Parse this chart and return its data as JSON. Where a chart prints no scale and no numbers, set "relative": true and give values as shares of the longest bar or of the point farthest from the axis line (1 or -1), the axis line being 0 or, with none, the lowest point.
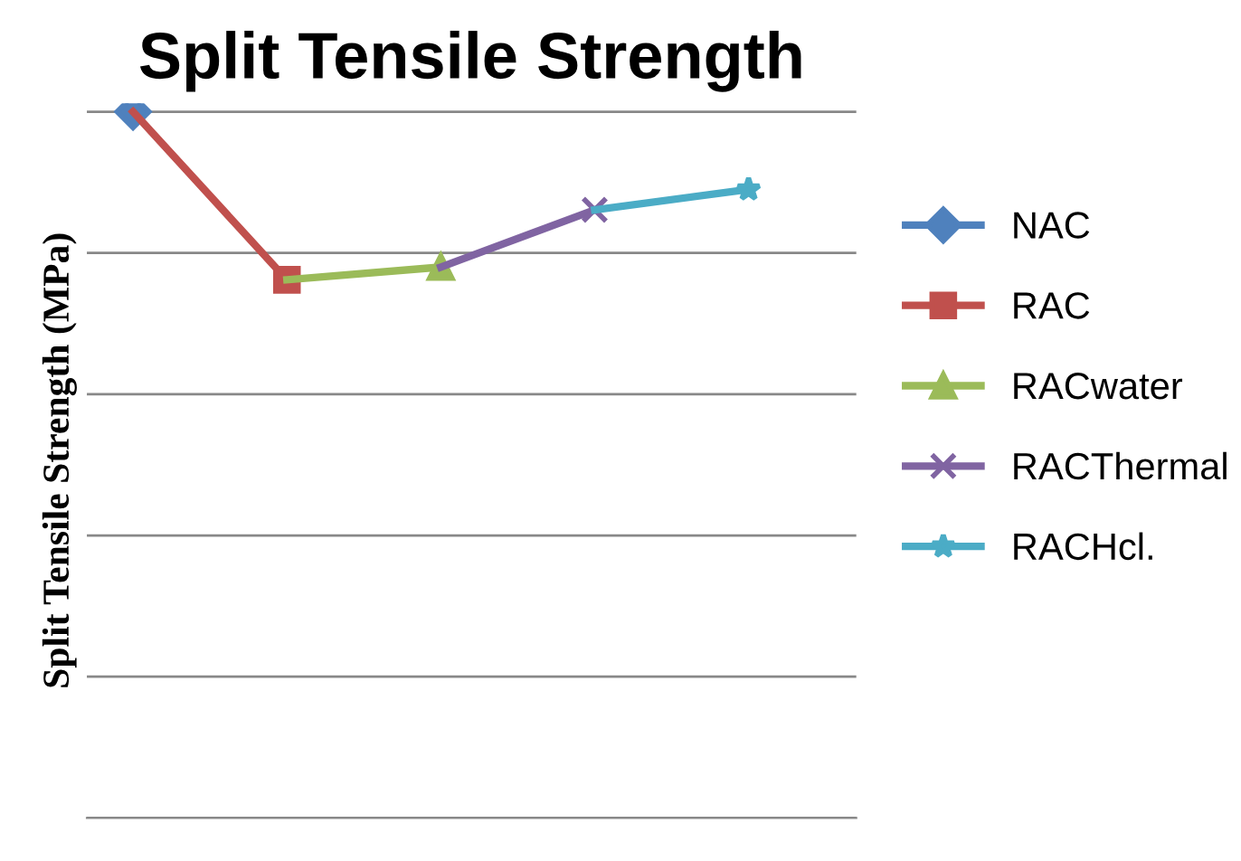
{
  "chart_data": {
    "type": "line",
    "title": "Split Tensile Strength",
    "ylabel": "Split Tensile Strength (MPa)",
    "relative": true,
    "categories": [
      null,
      null,
      null,
      null,
      null
    ],
    "series": [
      {
        "name": "NAC",
        "color": "#4f81bd",
        "marker": "diamond",
        "values": [
          1,
          null,
          null,
          null,
          null
        ]
      },
      {
        "name": "RAC",
        "color": "#c0504d",
        "marker": "square",
        "values": [
          1,
          0.762,
          null,
          null,
          null
        ]
      },
      {
        "name": "RACwater",
        "color": "#9bbb59",
        "marker": "triangle",
        "values": [
          null,
          0.762,
          0.78,
          null,
          null
        ]
      },
      {
        "name": "RACThermal",
        "color": "#8064a2",
        "marker": "cross",
        "values": [
          null,
          null,
          0.78,
          0.861,
          null
        ]
      },
      {
        "name": "RACHcl.",
        "color": "#4bacc6",
        "marker": "star",
        "values": [
          null,
          null,
          null,
          0.861,
          0.89
        ]
      }
    ],
    "grid": "y",
    "legend": "right"
  }
}
